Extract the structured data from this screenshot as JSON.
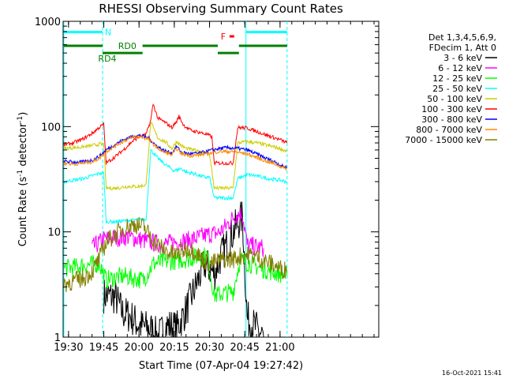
{
  "chart_data": {
    "type": "line",
    "title": "RHESSI Observing Summary Count Rates",
    "xlabel": "Start Time (07-Apr-04 19:27:42)",
    "ylabel_main": "Count Rate (s",
    "ylabel_sup1": "-1",
    "ylabel_mid": " detector",
    "ylabel_sup2": "-1",
    "ylabel_end": ")",
    "x_start_min": 1167.7,
    "x_end_min": 1302,
    "x_unit": "minutes of day",
    "yscale": "log",
    "ylim": [
      1,
      1000
    ],
    "x_ticks": [
      {
        "value": 1170,
        "label": "19:30"
      },
      {
        "value": 1185,
        "label": "19:45"
      },
      {
        "value": 1200,
        "label": "20:00"
      },
      {
        "value": 1215,
        "label": "20:15"
      },
      {
        "value": 1230,
        "label": "20:30"
      },
      {
        "value": 1245,
        "label": "20:45"
      },
      {
        "value": 1260,
        "label": "21:00"
      }
    ],
    "y_ticks": [
      {
        "value": 1,
        "label": "1"
      },
      {
        "value": 10,
        "label": "10"
      },
      {
        "value": 100,
        "label": "100"
      },
      {
        "value": 1000,
        "label": "1000"
      }
    ],
    "legend": {
      "header": [
        "Det 1,3,4,5,6,9,",
        "FDecim 1, Att 0"
      ],
      "position": "right"
    },
    "series": [
      {
        "name": "3 - 6 keV",
        "color": "#000000",
        "points": [
          [
            1185,
            2.5
          ],
          [
            1190,
            2.4
          ],
          [
            1193,
            1.7
          ],
          [
            1196,
            1.6
          ],
          [
            1200,
            1.3
          ],
          [
            1205,
            1.2
          ],
          [
            1208,
            1.0
          ],
          [
            1212,
            1.3
          ],
          [
            1216,
            1.2
          ],
          [
            1220,
            1.8
          ],
          [
            1224,
            3.0
          ],
          [
            1228,
            5.0
          ],
          [
            1232,
            4.0
          ],
          [
            1235,
            6.0
          ],
          [
            1238,
            8.0
          ],
          [
            1241,
            11.0
          ],
          [
            1244,
            14.0
          ],
          [
            1246,
            1.5
          ],
          [
            1250,
            1.2
          ],
          [
            1253,
            1.0
          ]
        ]
      },
      {
        "name": "6 - 12 keV",
        "color": "#ff00ff",
        "points": [
          [
            1180,
            7.0
          ],
          [
            1185,
            8.5
          ],
          [
            1190,
            8.8
          ],
          [
            1195,
            9.0
          ],
          [
            1200,
            8.5
          ],
          [
            1205,
            8.0
          ],
          [
            1210,
            7.6
          ],
          [
            1215,
            8.0
          ],
          [
            1220,
            8.2
          ],
          [
            1225,
            8.8
          ],
          [
            1230,
            9.5
          ],
          [
            1234,
            9.8
          ],
          [
            1238,
            12.0
          ],
          [
            1241,
            14.5
          ],
          [
            1244,
            15.0
          ],
          [
            1246,
            7.5
          ],
          [
            1250,
            7.2
          ],
          [
            1253,
            7.0
          ]
        ]
      },
      {
        "name": "12 - 25 keV",
        "color": "#00ff00",
        "points": [
          [
            1168,
            4.5
          ],
          [
            1172,
            4.6
          ],
          [
            1176,
            4.8
          ],
          [
            1180,
            4.9
          ],
          [
            1183,
            5.0
          ],
          [
            1186,
            3.5
          ],
          [
            1190,
            3.7
          ],
          [
            1194,
            3.8
          ],
          [
            1198,
            3.6
          ],
          [
            1202,
            3.5
          ],
          [
            1206,
            5.0
          ],
          [
            1210,
            5.2
          ],
          [
            1215,
            5.3
          ],
          [
            1220,
            5.5
          ],
          [
            1225,
            5.8
          ],
          [
            1229,
            6.0
          ],
          [
            1232,
            2.5
          ],
          [
            1236,
            2.6
          ],
          [
            1240,
            2.7
          ],
          [
            1243,
            5.5
          ],
          [
            1247,
            5.0
          ],
          [
            1252,
            4.5
          ],
          [
            1256,
            4.2
          ],
          [
            1260,
            4.0
          ],
          [
            1263,
            3.8
          ]
        ]
      },
      {
        "name": "25 - 50 keV",
        "color": "#00ffff",
        "points": [
          [
            1168,
            30
          ],
          [
            1172,
            31
          ],
          [
            1176,
            32
          ],
          [
            1180,
            34
          ],
          [
            1183,
            36
          ],
          [
            1185,
            36
          ],
          [
            1186,
            12.5
          ],
          [
            1190,
            12.5
          ],
          [
            1195,
            12.8
          ],
          [
            1200,
            13.0
          ],
          [
            1203,
            13.0
          ],
          [
            1205,
            60
          ],
          [
            1208,
            50
          ],
          [
            1211,
            44
          ],
          [
            1215,
            38
          ],
          [
            1218,
            40
          ],
          [
            1220,
            37
          ],
          [
            1223,
            36
          ],
          [
            1226,
            34
          ],
          [
            1228,
            33
          ],
          [
            1230,
            33
          ],
          [
            1232,
            21
          ],
          [
            1236,
            21
          ],
          [
            1240,
            21
          ],
          [
            1242,
            32
          ],
          [
            1246,
            35
          ],
          [
            1250,
            34
          ],
          [
            1255,
            32
          ],
          [
            1260,
            31
          ],
          [
            1263,
            30
          ]
        ]
      },
      {
        "name": "50 - 100 keV",
        "color": "#cccc00",
        "points": [
          [
            1168,
            62
          ],
          [
            1172,
            63
          ],
          [
            1176,
            64
          ],
          [
            1180,
            66
          ],
          [
            1183,
            68
          ],
          [
            1185,
            68
          ],
          [
            1186,
            26
          ],
          [
            1190,
            26
          ],
          [
            1195,
            27
          ],
          [
            1200,
            27
          ],
          [
            1203,
            28
          ],
          [
            1205,
            110
          ],
          [
            1208,
            78
          ],
          [
            1211,
            72
          ],
          [
            1214,
            62
          ],
          [
            1216,
            72
          ],
          [
            1218,
            66
          ],
          [
            1220,
            62
          ],
          [
            1223,
            60
          ],
          [
            1226,
            58
          ],
          [
            1228,
            56
          ],
          [
            1230,
            55
          ],
          [
            1232,
            26
          ],
          [
            1236,
            26
          ],
          [
            1240,
            26
          ],
          [
            1242,
            70
          ],
          [
            1246,
            72
          ],
          [
            1250,
            70
          ],
          [
            1255,
            66
          ],
          [
            1260,
            62
          ],
          [
            1263,
            58
          ]
        ]
      },
      {
        "name": "100 - 300 keV",
        "color": "#ff0000",
        "points": [
          [
            1168,
            67
          ],
          [
            1172,
            70
          ],
          [
            1176,
            76
          ],
          [
            1180,
            86
          ],
          [
            1183,
            98
          ],
          [
            1185,
            105
          ],
          [
            1186,
            45
          ],
          [
            1190,
            52
          ],
          [
            1194,
            62
          ],
          [
            1197,
            72
          ],
          [
            1200,
            80
          ],
          [
            1203,
            84
          ],
          [
            1205,
            115
          ],
          [
            1206,
            165
          ],
          [
            1208,
            120
          ],
          [
            1211,
            110
          ],
          [
            1214,
            98
          ],
          [
            1216,
            112
          ],
          [
            1217,
            125
          ],
          [
            1219,
            103
          ],
          [
            1222,
            92
          ],
          [
            1226,
            88
          ],
          [
            1229,
            84
          ],
          [
            1231,
            80
          ],
          [
            1232,
            45
          ],
          [
            1236,
            45
          ],
          [
            1240,
            45
          ],
          [
            1242,
            98
          ],
          [
            1246,
            97
          ],
          [
            1250,
            90
          ],
          [
            1255,
            82
          ],
          [
            1260,
            75
          ],
          [
            1263,
            70
          ]
        ]
      },
      {
        "name": "300 - 800 keV",
        "color": "#0000ff",
        "points": [
          [
            1168,
            47
          ],
          [
            1172,
            46
          ],
          [
            1176,
            46
          ],
          [
            1180,
            48
          ],
          [
            1183,
            52
          ],
          [
            1186,
            60
          ],
          [
            1190,
            68
          ],
          [
            1194,
            76
          ],
          [
            1198,
            82
          ],
          [
            1201,
            82
          ],
          [
            1204,
            78
          ],
          [
            1207,
            67
          ],
          [
            1210,
            60
          ],
          [
            1214,
            56
          ],
          [
            1216,
            65
          ],
          [
            1218,
            57
          ],
          [
            1222,
            55
          ],
          [
            1226,
            56
          ],
          [
            1230,
            59
          ],
          [
            1234,
            62
          ],
          [
            1238,
            63
          ],
          [
            1242,
            62
          ],
          [
            1246,
            60
          ],
          [
            1250,
            55
          ],
          [
            1254,
            50
          ],
          [
            1258,
            46
          ],
          [
            1261,
            42
          ],
          [
            1263,
            41
          ]
        ]
      },
      {
        "name": "800 - 7000 keV",
        "color": "#ff8800",
        "points": [
          [
            1168,
            45
          ],
          [
            1172,
            44
          ],
          [
            1176,
            45
          ],
          [
            1180,
            46
          ],
          [
            1183,
            50
          ],
          [
            1186,
            58
          ],
          [
            1190,
            66
          ],
          [
            1194,
            74
          ],
          [
            1198,
            80
          ],
          [
            1201,
            80
          ],
          [
            1204,
            76
          ],
          [
            1207,
            65
          ],
          [
            1210,
            58
          ],
          [
            1214,
            54
          ],
          [
            1216,
            62
          ],
          [
            1218,
            55
          ],
          [
            1222,
            53
          ],
          [
            1226,
            54
          ],
          [
            1230,
            56
          ],
          [
            1234,
            58
          ],
          [
            1238,
            58
          ],
          [
            1242,
            57
          ],
          [
            1246,
            55
          ],
          [
            1250,
            51
          ],
          [
            1254,
            47
          ],
          [
            1258,
            44
          ],
          [
            1261,
            41
          ],
          [
            1263,
            40
          ]
        ]
      },
      {
        "name": "7000 - 15000 keV",
        "color": "#808000",
        "points": [
          [
            1168,
            3.2
          ],
          [
            1172,
            3.4
          ],
          [
            1176,
            3.6
          ],
          [
            1180,
            4.2
          ],
          [
            1183,
            5.5
          ],
          [
            1186,
            8.0
          ],
          [
            1190,
            9.5
          ],
          [
            1194,
            11.0
          ],
          [
            1198,
            11.8
          ],
          [
            1202,
            11.2
          ],
          [
            1205,
            9.0
          ],
          [
            1208,
            7.5
          ],
          [
            1212,
            6.5
          ],
          [
            1215,
            6.0
          ],
          [
            1218,
            6.5
          ],
          [
            1221,
            7.0
          ],
          [
            1224,
            6.5
          ],
          [
            1227,
            5.5
          ],
          [
            1230,
            5.0
          ],
          [
            1233,
            5.2
          ],
          [
            1236,
            5.5
          ],
          [
            1240,
            5.5
          ],
          [
            1244,
            6.0
          ],
          [
            1248,
            6.0
          ],
          [
            1252,
            5.5
          ],
          [
            1256,
            5.0
          ],
          [
            1260,
            4.5
          ],
          [
            1263,
            4.3
          ]
        ]
      }
    ],
    "flag_bars": [
      {
        "label": "N",
        "color": "#00ffff",
        "start": 1168,
        "end": 1184.5,
        "value": 790
      },
      {
        "label": "",
        "color": "#00ffff",
        "start": 1245.5,
        "end": 1263,
        "value": 790
      },
      {
        "label": "",
        "color": "#008000",
        "start": 1168,
        "end": 1184.5,
        "value": 585
      },
      {
        "label": "RD4",
        "color": "#008000",
        "start": 1184.5,
        "end": 1188.5,
        "value": 500
      },
      {
        "label": "RD0",
        "color": "#008000",
        "start": 1188.5,
        "end": 1201.5,
        "value": 500
      },
      {
        "label": "",
        "color": "#008000",
        "start": 1201.5,
        "end": 1233.5,
        "value": 585
      },
      {
        "label": "",
        "color": "#008000",
        "start": 1233.5,
        "end": 1242.5,
        "value": 500
      },
      {
        "label": "",
        "color": "#008000",
        "start": 1242.5,
        "end": 1263,
        "value": 585
      },
      {
        "label": "F",
        "color": "#ff0000",
        "start": 1238.5,
        "end": 1240.5,
        "value": 720
      }
    ],
    "night_lines": {
      "color": "#00ffff",
      "solid": [
        1168,
        1245.5
      ],
      "dashed": [
        1184.5,
        1263
      ]
    }
  },
  "footer": {
    "timestamp": "16-Oct-2021 15:41"
  }
}
